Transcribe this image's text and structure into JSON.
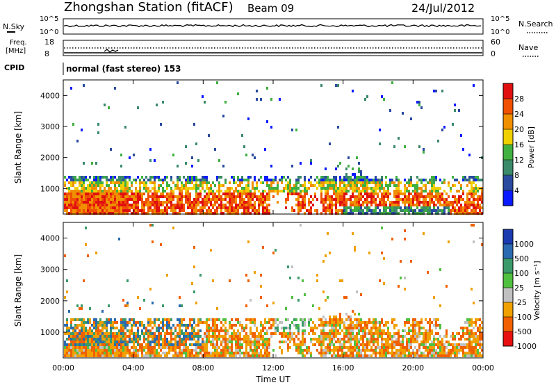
{
  "header": {
    "station": "Zhongshan Station (fitACF)",
    "beam": "Beam 09",
    "date": "24/Jul/2012"
  },
  "top_panels": {
    "nsky_label": "N.Sky",
    "nsky_ticks": [
      "10^5",
      "10^0"
    ],
    "nsearch_label": "N.Search",
    "nsearch_ticks": [
      "10^5",
      "10^0"
    ],
    "freq_label_1": "Freq.",
    "freq_label_2": "[MHz]",
    "freq_ticks": [
      "18",
      "8"
    ],
    "nave_label": "Nave",
    "nave_ticks": [
      "60",
      "0"
    ],
    "cpid_label": "CPID",
    "cpid_text": "normal (fast stereo) 153"
  },
  "chart_data": [
    {
      "type": "heatmap",
      "name": "power",
      "xlabel": "",
      "ylabel": "Slant Range [km]",
      "yticks": [
        "1000",
        "2000",
        "3000",
        "4000"
      ],
      "ylim": [
        180,
        4500
      ],
      "colorbar_label": "Power [dB]",
      "colorbar_ticks": [
        "4",
        "8",
        "12",
        "16",
        "20",
        "24",
        "28"
      ],
      "colorbar_colors": [
        "#0a1aff",
        "#2a4aa0",
        "#3a8a6a",
        "#40b040",
        "#f0d000",
        "#f09000",
        "#f05000",
        "#e01010"
      ]
    },
    {
      "type": "heatmap",
      "name": "velocity",
      "xlabel": "Time UT",
      "ylabel": "Slant Range [km]",
      "yticks": [
        "1000",
        "2000",
        "3000",
        "4000"
      ],
      "ylim": [
        180,
        4500
      ],
      "xticks": [
        "00:00",
        "04:00",
        "08:00",
        "12:00",
        "16:00",
        "20:00",
        "00:00"
      ],
      "colorbar_label": "Velocity [m s⁻¹]",
      "colorbar_ticks": [
        "1000",
        "500",
        "100",
        "25",
        "-25",
        "-100",
        "-500",
        "-1000"
      ],
      "colorbar_colors": [
        "#1a3ab0",
        "#2a6ab0",
        "#3a9a6a",
        "#50c040",
        "#c0c0c0",
        "#f0a000",
        "#f06000",
        "#e81010"
      ]
    }
  ],
  "colors": {
    "frame": "#000000",
    "background": "#ffffff"
  }
}
